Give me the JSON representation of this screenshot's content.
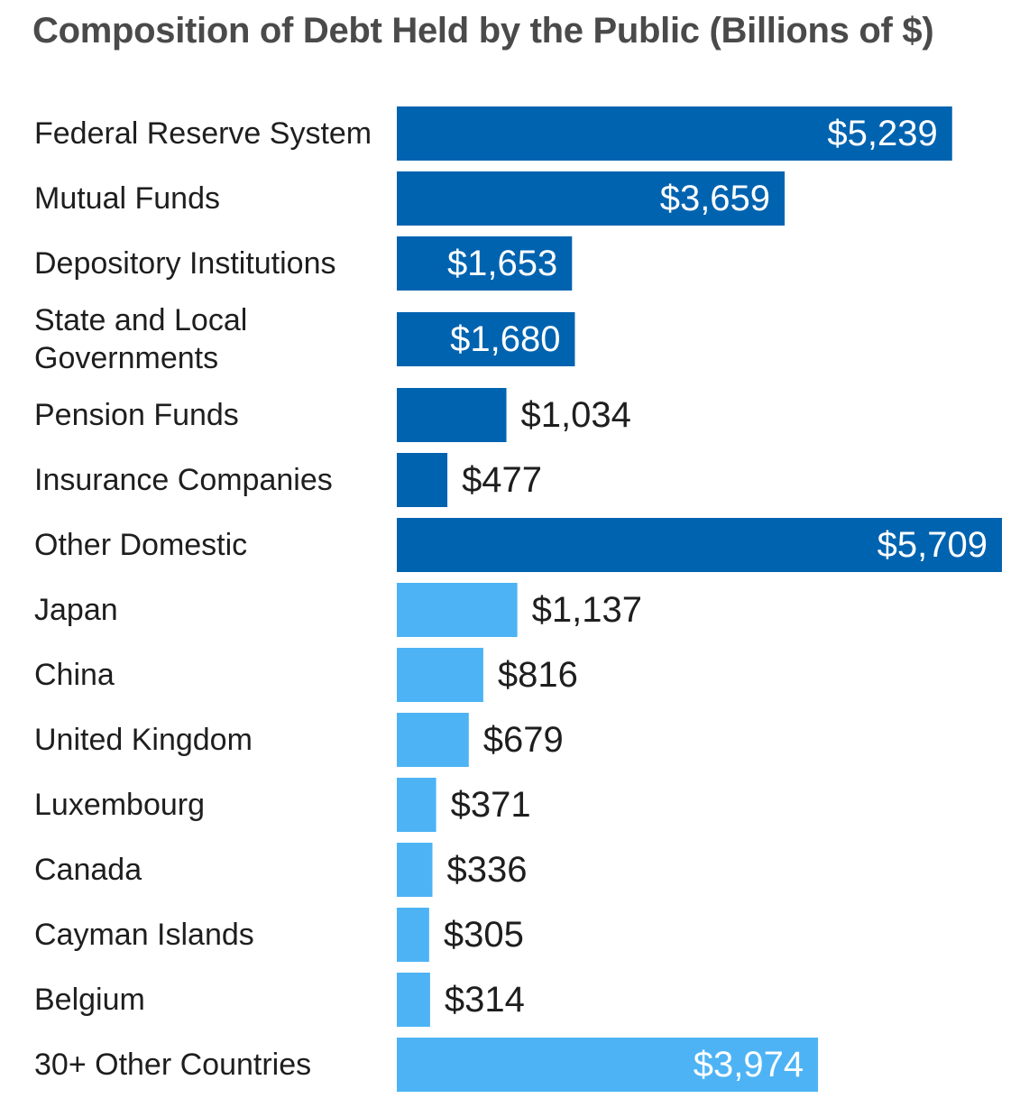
{
  "chart_data": {
    "type": "bar",
    "orientation": "horizontal",
    "title": "Composition of Debt Held by the Public (Billions of $)",
    "xlabel": "",
    "ylabel": "",
    "xlim": [
      0,
      5709
    ],
    "grid": false,
    "legend": "none",
    "categories": [
      [
        "Federal Reserve System"
      ],
      [
        "Mutual Funds"
      ],
      [
        "Depository Institutions"
      ],
      [
        "State and Local",
        "Governments"
      ],
      [
        "Pension Funds"
      ],
      [
        "Insurance Companies"
      ],
      [
        "Other Domestic"
      ],
      [
        "Japan"
      ],
      [
        "China"
      ],
      [
        "United Kingdom"
      ],
      [
        "Luxembourg"
      ],
      [
        "Canada"
      ],
      [
        "Cayman Islands"
      ],
      [
        "Belgium"
      ],
      [
        "30+ Other Countries"
      ]
    ],
    "values": [
      5239,
      3659,
      1653,
      1680,
      1034,
      477,
      5709,
      1137,
      816,
      679,
      371,
      336,
      305,
      314,
      3974
    ],
    "value_labels": [
      "$5,239",
      "$3,659",
      "$1,653",
      "$1,680",
      "$1,034",
      "$477",
      "$5,709",
      "$1,137",
      "$816",
      "$679",
      "$371",
      "$336",
      "$305",
      "$314",
      "$3,974"
    ],
    "groups": [
      "domestic",
      "domestic",
      "domestic",
      "domestic",
      "domestic",
      "domestic",
      "domestic",
      "foreign",
      "foreign",
      "foreign",
      "foreign",
      "foreign",
      "foreign",
      "foreign",
      "foreign"
    ],
    "colors": {
      "domestic": "#0063b0",
      "foreign": "#4db3f5",
      "label_inside": "#ffffff",
      "label_outside": "#1e1e1e"
    }
  }
}
